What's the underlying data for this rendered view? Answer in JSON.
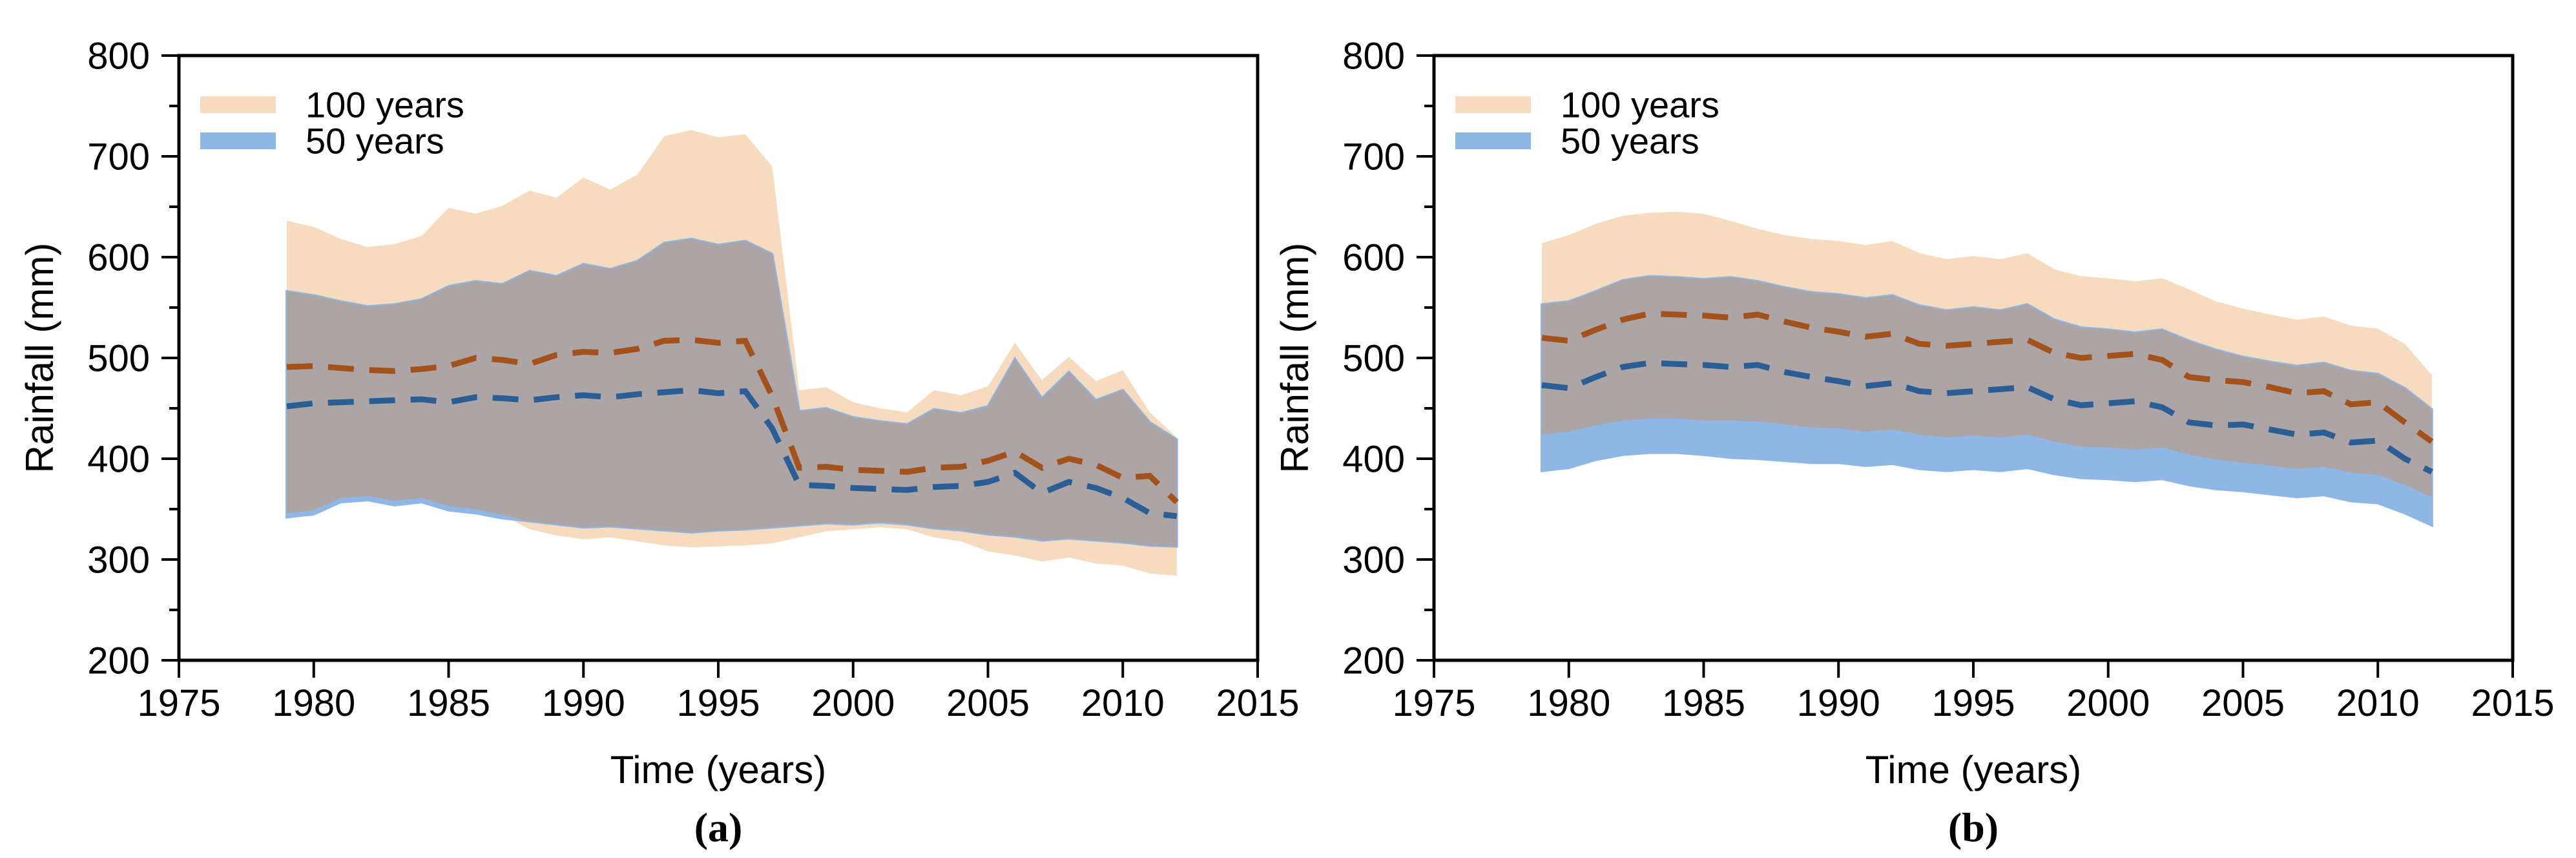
{
  "page": {
    "background": "#ffffff"
  },
  "colors": {
    "band_100": "#F7DBBE",
    "band_50": "#8FB7E5",
    "band_overlap": "#ACA4A5",
    "mean_100": "#A4521B",
    "mean_50": "#2C5E96",
    "axis": "#000000"
  },
  "legend": {
    "items": [
      {
        "label": "100 years",
        "color_key": "band_100",
        "swatch": "peach-rect"
      },
      {
        "label": "50 years",
        "color_key": "band_50",
        "swatch": "blue-rect"
      }
    ]
  },
  "axes": {
    "y": {
      "title": "Rainfall (mm)",
      "min": 200,
      "max": 800,
      "major_step": 100,
      "minor_step": 50,
      "tick_labels": [
        "200",
        "300",
        "400",
        "500",
        "600",
        "700",
        "800"
      ]
    },
    "x": {
      "title": "Time (years)",
      "min": 1975,
      "max": 2015,
      "major_step": 5,
      "tick_labels": [
        "1975",
        "1980",
        "1985",
        "1990",
        "1995",
        "2000",
        "2005",
        "2010",
        "2015"
      ]
    }
  },
  "chart_data": [
    {
      "id": "a",
      "caption": "(a)",
      "type": "area",
      "xlabel": "Time (years)",
      "ylabel": "Rainfall (mm)",
      "xlim": [
        1975,
        2015
      ],
      "ylim": [
        200,
        800
      ],
      "grid": false,
      "legend_position": "top-left",
      "years": [
        1979,
        1980,
        1981,
        1982,
        1983,
        1984,
        1985,
        1986,
        1987,
        1988,
        1989,
        1990,
        1991,
        1992,
        1993,
        1994,
        1995,
        1996,
        1997,
        1998,
        1999,
        2000,
        2001,
        2002,
        2003,
        2004,
        2005,
        2006,
        2007,
        2008,
        2009,
        2010,
        2011,
        2012
      ],
      "series": [
        {
          "name": "100 years band",
          "role": "band",
          "color_key": "band_100",
          "upper": [
            636,
            630,
            618,
            610,
            613,
            621,
            649,
            643,
            651,
            666,
            659,
            679,
            667,
            682,
            720,
            726,
            719,
            722,
            690,
            468,
            471,
            456,
            450,
            446,
            468,
            463,
            472,
            515,
            478,
            501,
            477,
            488,
            446,
            421
          ],
          "lower": [
            346,
            349,
            361,
            363,
            358,
            361,
            353,
            350,
            344,
            330,
            324,
            320,
            322,
            318,
            314,
            312,
            313,
            314,
            316,
            322,
            328,
            330,
            332,
            330,
            322,
            318,
            308,
            304,
            298,
            302,
            296,
            294,
            286,
            284
          ]
        },
        {
          "name": "50 years band",
          "role": "band",
          "color_key": "band_50",
          "upper": [
            566,
            562,
            556,
            551,
            553,
            558,
            571,
            576,
            573,
            586,
            581,
            593,
            588,
            596,
            614,
            618,
            612,
            616,
            603,
            447,
            450,
            441,
            437,
            434,
            449,
            445,
            452,
            499,
            460,
            486,
            458,
            468,
            436,
            419
          ],
          "lower": [
            342,
            345,
            357,
            359,
            354,
            357,
            349,
            346,
            341,
            338,
            335,
            332,
            333,
            331,
            329,
            327,
            329,
            330,
            332,
            334,
            336,
            335,
            337,
            335,
            331,
            329,
            325,
            323,
            319,
            321,
            319,
            317,
            314,
            313
          ]
        },
        {
          "name": "100 years mean",
          "role": "dashed_line",
          "color_key": "mean_100",
          "values": [
            491,
            492,
            490,
            488,
            487,
            489,
            492,
            500,
            498,
            494,
            503,
            506,
            505,
            509,
            517,
            518,
            515,
            517,
            462,
            391,
            392,
            389,
            388,
            387,
            391,
            392,
            398,
            407,
            391,
            400,
            394,
            381,
            383,
            357
          ]
        },
        {
          "name": "50 years mean",
          "role": "dashed_line",
          "color_key": "mean_50",
          "values": [
            452,
            455,
            456,
            457,
            458,
            459,
            456,
            461,
            460,
            458,
            461,
            463,
            461,
            464,
            466,
            468,
            465,
            467,
            430,
            374,
            373,
            371,
            370,
            369,
            372,
            373,
            377,
            386,
            366,
            377,
            371,
            361,
            346,
            343
          ]
        }
      ]
    },
    {
      "id": "b",
      "caption": "(b)",
      "type": "area",
      "xlabel": "Time (years)",
      "ylabel": "Rainfall (mm)",
      "xlim": [
        1975,
        2015
      ],
      "ylim": [
        200,
        800
      ],
      "grid": false,
      "legend_position": "top-left",
      "years": [
        1979,
        1980,
        1981,
        1982,
        1983,
        1984,
        1985,
        1986,
        1987,
        1988,
        1989,
        1990,
        1991,
        1992,
        1993,
        1994,
        1995,
        1996,
        1997,
        1998,
        1999,
        2000,
        2001,
        2002,
        2003,
        2004,
        2005,
        2006,
        2007,
        2008,
        2009,
        2010,
        2011,
        2012
      ],
      "series": [
        {
          "name": "100 years band",
          "role": "band",
          "color_key": "band_100",
          "upper": [
            614,
            622,
            633,
            641,
            644,
            645,
            643,
            636,
            628,
            622,
            618,
            616,
            612,
            616,
            604,
            598,
            601,
            598,
            604,
            588,
            581,
            579,
            576,
            579,
            568,
            556,
            549,
            543,
            538,
            541,
            532,
            529,
            514,
            483
          ],
          "lower": [
            424,
            427,
            433,
            438,
            440,
            440,
            438,
            438,
            437,
            434,
            431,
            430,
            427,
            429,
            424,
            421,
            423,
            421,
            424,
            417,
            412,
            411,
            409,
            411,
            404,
            399,
            396,
            393,
            390,
            392,
            386,
            384,
            374,
            362
          ]
        },
        {
          "name": "50 years band",
          "role": "band",
          "color_key": "band_50",
          "upper": [
            553,
            556,
            566,
            577,
            581,
            580,
            578,
            580,
            576,
            570,
            565,
            563,
            559,
            562,
            552,
            547,
            550,
            547,
            553,
            538,
            530,
            528,
            525,
            528,
            517,
            508,
            501,
            496,
            492,
            495,
            487,
            484,
            470,
            449
          ],
          "lower": [
            388,
            391,
            399,
            404,
            406,
            406,
            404,
            401,
            400,
            398,
            396,
            396,
            393,
            395,
            390,
            388,
            390,
            388,
            391,
            385,
            381,
            380,
            378,
            380,
            374,
            370,
            368,
            365,
            362,
            364,
            358,
            356,
            346,
            334
          ]
        },
        {
          "name": "100 years mean",
          "role": "dashed_line",
          "color_key": "mean_100",
          "values": [
            520,
            517,
            528,
            538,
            544,
            543,
            542,
            540,
            543,
            536,
            530,
            526,
            521,
            524,
            514,
            512,
            514,
            516,
            518,
            505,
            500,
            502,
            504,
            498,
            481,
            478,
            476,
            471,
            465,
            467,
            454,
            456,
            436,
            417
          ]
        },
        {
          "name": "50 years mean",
          "role": "dashed_line",
          "color_key": "mean_50",
          "values": [
            473,
            470,
            481,
            491,
            495,
            494,
            493,
            491,
            493,
            486,
            481,
            477,
            472,
            475,
            467,
            465,
            467,
            469,
            471,
            459,
            453,
            455,
            457,
            451,
            436,
            433,
            434,
            429,
            424,
            426,
            416,
            418,
            400,
            387
          ]
        }
      ]
    }
  ]
}
